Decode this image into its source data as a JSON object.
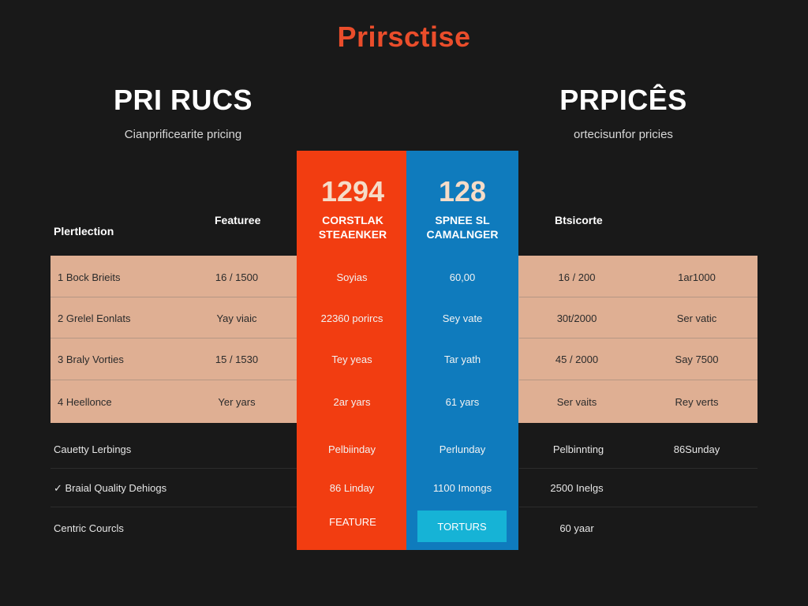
{
  "page": {
    "title": "Prirsctise"
  },
  "left_plan": {
    "name": "PRI RUCS",
    "subtitle": "Cianprificearite pricing"
  },
  "right_plan": {
    "name": "PRPICÊS",
    "subtitle": "ortecisunfor pricies"
  },
  "columns": {
    "orange": {
      "price": "1294",
      "name_line1": "CORSTLAK",
      "name_line2": "STEAENKER"
    },
    "blue": {
      "price": "128",
      "name_line1": "SPNEE SL",
      "name_line2": "CAMALNGER"
    }
  },
  "headers": {
    "row_label": "Plertlection",
    "features": "Featuree",
    "right": "Btsicorte"
  },
  "band_rows": [
    {
      "label": "1  Bock Brieits",
      "features": "16 / 1500",
      "orange": "Soyias",
      "blue": "60,00",
      "right1": "16 / 200",
      "right2": "1ar1000"
    },
    {
      "label": "2  Grelel Eonlats",
      "features": "Yay viaic",
      "orange": "22360 porircs",
      "blue": "Sey vate",
      "right1": "30t/2000",
      "right2": "Ser vatic"
    },
    {
      "label": "3  Braly Vorties",
      "features": "15 / 1530",
      "orange": "Tey yeas",
      "blue": "Tar yath",
      "right1": "45 / 2000",
      "right2": "Say 7500"
    },
    {
      "label": "4  Heellonce",
      "features": "Yer yars",
      "orange": "2ar yars",
      "blue": "61 yars",
      "right1": "Ser vaits",
      "right2": "Rey verts"
    }
  ],
  "dark_rows": [
    {
      "label": "Cauetty Lerbings",
      "orange": "Pelbiinday",
      "blue": "Perlunday",
      "right1": "Pelbinnting",
      "right2": "86Sunday"
    },
    {
      "label": "✓  Braial Quality Dehiogs",
      "orange": "86 Linday",
      "blue": "1100 Imongs",
      "right1": "2500 Inelgs",
      "right2": ""
    },
    {
      "label": "Centric Courcls",
      "orange": "FEATURE",
      "blue": "TORTURS",
      "right1": "60 yaar",
      "right2": ""
    }
  ],
  "colors": {
    "accent_title": "#ea4d2b",
    "orange_column": "#f23d11",
    "blue_column": "#0f7bbd",
    "band": "#dfaf93",
    "button": "#16b3d6",
    "background": "#191919"
  }
}
